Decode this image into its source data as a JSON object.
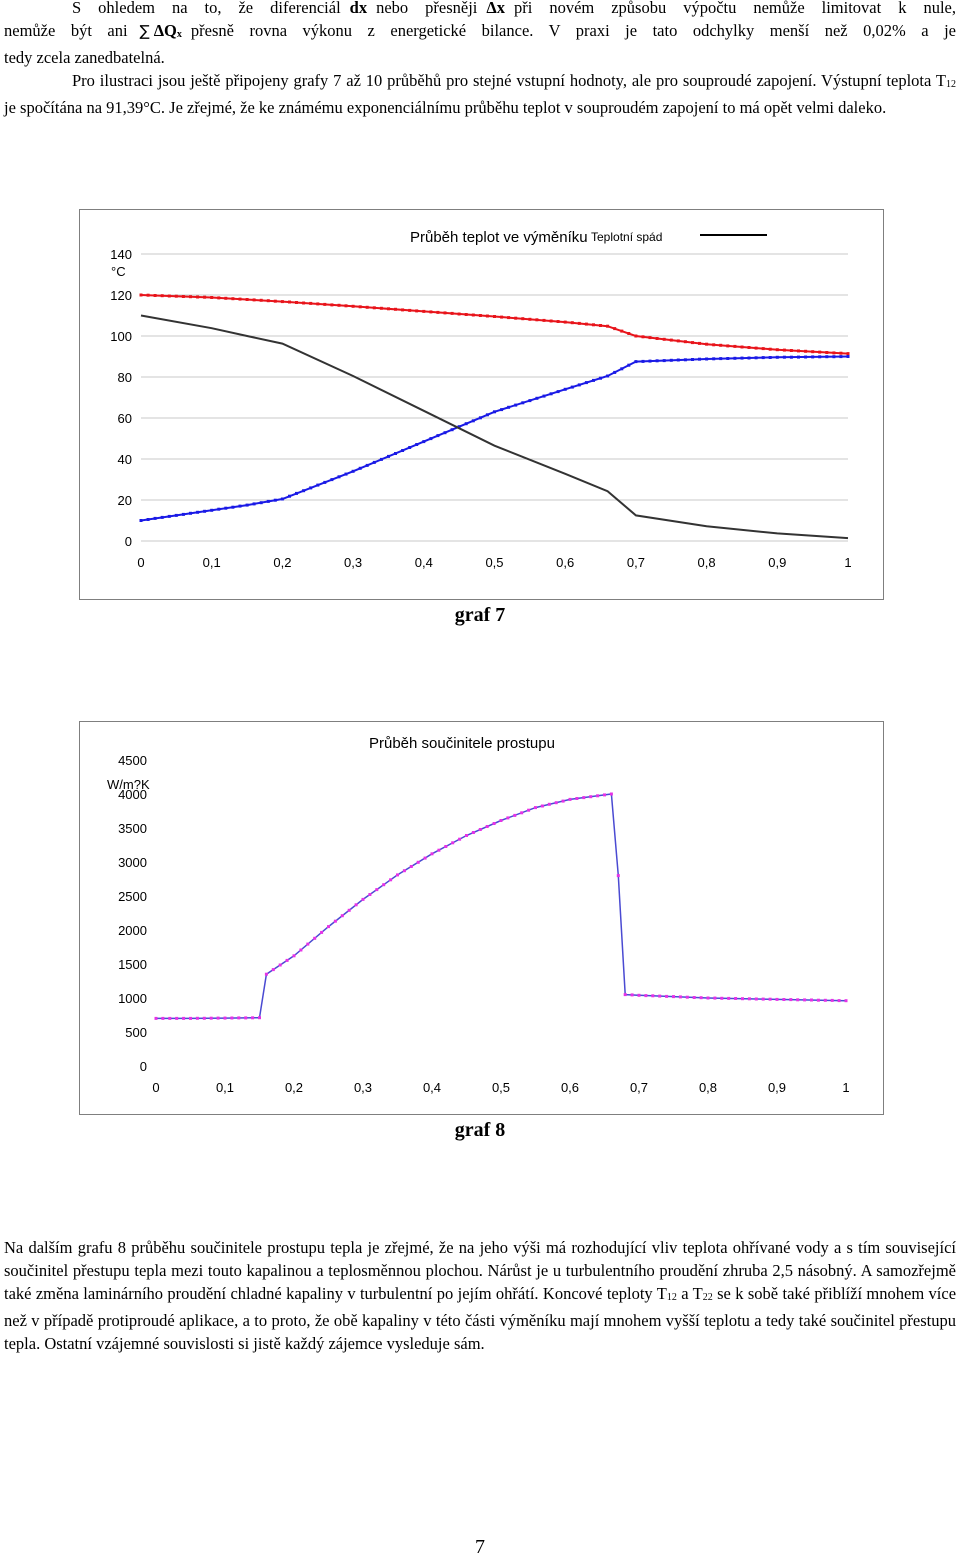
{
  "intro": {
    "p1": {
      "a": "S ohledem na to, že diferenciál",
      "dx": "dx",
      "b": "nebo přesněji",
      "delta_x": "Δx",
      "c": "při novém způsobu výpočtu nemůže limitovat k nule,",
      "d": "nemůže být ani",
      "sum": "∑",
      "dq": "ΔQ",
      "dq_sub": "x",
      "e": "přesně rovna výkonu z energetické bilance. V praxi je tato odchylky menší než 0,02% a je",
      "f": "tedy zcela zanedbatelná."
    },
    "p2": {
      "a": "Pro ilustraci jsou ještě připojeny grafy 7 až 10 průběhů pro stejné vstupní hodnoty, ale pro souproudé zapojení. Výstupní teplota T",
      "sub": "12",
      "b": "je spočítána na  91,39°C. Je zřejmé, že ke známému exponenciálnímu průběhu teplot v souproudém zapojení to má opět velmi daleko."
    }
  },
  "chart_data": [
    {
      "type": "line",
      "title": "Průběh teplot ve výměníku",
      "ylabel": "°C",
      "ylim": [
        0,
        140
      ],
      "xlim": [
        0,
        1
      ],
      "yticks": [
        "0",
        "20",
        "40",
        "60",
        "80",
        "100",
        "120",
        "140"
      ],
      "xticks": [
        "0",
        "0,1",
        "0,2",
        "0,3",
        "0,4",
        "0,5",
        "0,6",
        "0,7",
        "0,8",
        "0,9",
        "1"
      ],
      "grid": "horizontal",
      "legend": {
        "label": "Teplotní spád",
        "position": "top-right"
      },
      "colors": {
        "hot": "#e8141b",
        "cold": "#1a1ae6",
        "difference": "#333333"
      },
      "series": [
        {
          "key": "hot",
          "markers": true,
          "x": [
            0,
            0.1,
            0.2,
            0.3,
            0.4,
            0.5,
            0.6,
            0.66,
            0.7,
            0.8,
            0.9,
            1
          ],
          "y": [
            120,
            118.8,
            116.8,
            114.5,
            112,
            109.5,
            106.8,
            104.8,
            100,
            96,
            93.3,
            91.4
          ]
        },
        {
          "key": "cold",
          "markers": true,
          "x": [
            0,
            0.1,
            0.15,
            0.2,
            0.3,
            0.4,
            0.5,
            0.6,
            0.66,
            0.7,
            0.8,
            0.9,
            1
          ],
          "y": [
            10,
            15,
            17.5,
            20.5,
            34,
            48.5,
            63,
            74,
            80.5,
            87.5,
            88.8,
            89.6,
            90
          ]
        },
        {
          "key": "difference",
          "markers": false,
          "x": [
            0,
            0.1,
            0.15,
            0.2,
            0.3,
            0.4,
            0.5,
            0.6,
            0.66,
            0.7,
            0.8,
            0.9,
            1
          ],
          "y": [
            110,
            103.8,
            100,
            96.3,
            80.5,
            63.5,
            46.5,
            32.8,
            24.3,
            12.5,
            7.2,
            3.7,
            1.4
          ]
        }
      ]
    },
    {
      "type": "line",
      "title": "Průběh součinitele prostupu",
      "ylabel": "W/m?K",
      "ylim": [
        0,
        4500
      ],
      "xlim": [
        0,
        1
      ],
      "yticks": [
        "0",
        "500",
        "1000",
        "1500",
        "2000",
        "2500",
        "3000",
        "3500",
        "4000",
        "4500"
      ],
      "xticks": [
        "0",
        "0,1",
        "0,2",
        "0,3",
        "0,4",
        "0,5",
        "0,6",
        "0,7",
        "0,8",
        "0,9",
        "1"
      ],
      "grid": "none",
      "legend": null,
      "colors": {
        "line": "#4a4ad2",
        "markers": "#e632e6"
      },
      "series": [
        {
          "key": "k",
          "markers": true,
          "x": [
            0,
            0.05,
            0.1,
            0.15,
            0.16,
            0.2,
            0.25,
            0.3,
            0.35,
            0.4,
            0.45,
            0.5,
            0.55,
            0.6,
            0.66,
            0.67,
            0.68,
            0.7,
            0.8,
            0.9,
            1
          ],
          "y": [
            700,
            700,
            705,
            710,
            1350,
            1620,
            2050,
            2450,
            2810,
            3120,
            3390,
            3610,
            3800,
            3920,
            4000,
            2800,
            1050,
            1040,
            1000,
            980,
            960
          ]
        }
      ]
    }
  ],
  "captions": {
    "graf7": "graf 7",
    "graf8": "graf 8"
  },
  "outro": {
    "a": "Na dalším grafu 8 průběhu součinitele prostupu tepla je zřejmé, že na jeho výši má rozhodující vliv teplota ohřívané vody a s tím související součinitel přestupu tepla mezi touto kapalinou a teplosměnnou plochou. Nárůst je u turbulentního proudění zhruba 2,5 násobný.  A samozřejmě také změna laminárního proudění chladné kapaliny v turbulentní po jejím ohřátí. Koncové teploty T",
    "sub1": "12",
    "b": "a T",
    "sub2": "22",
    "c": "se k sobě také přiblíží mnohem více než v případě protiproudé aplikace, a to proto, že obě kapaliny v této části výměníku mají mnohem vyšší teplotu a tedy také součinitel přestupu tepla. Ostatní vzájemné souvislosti si jistě každý zájemce vysleduje sám."
  },
  "page_number": "7"
}
